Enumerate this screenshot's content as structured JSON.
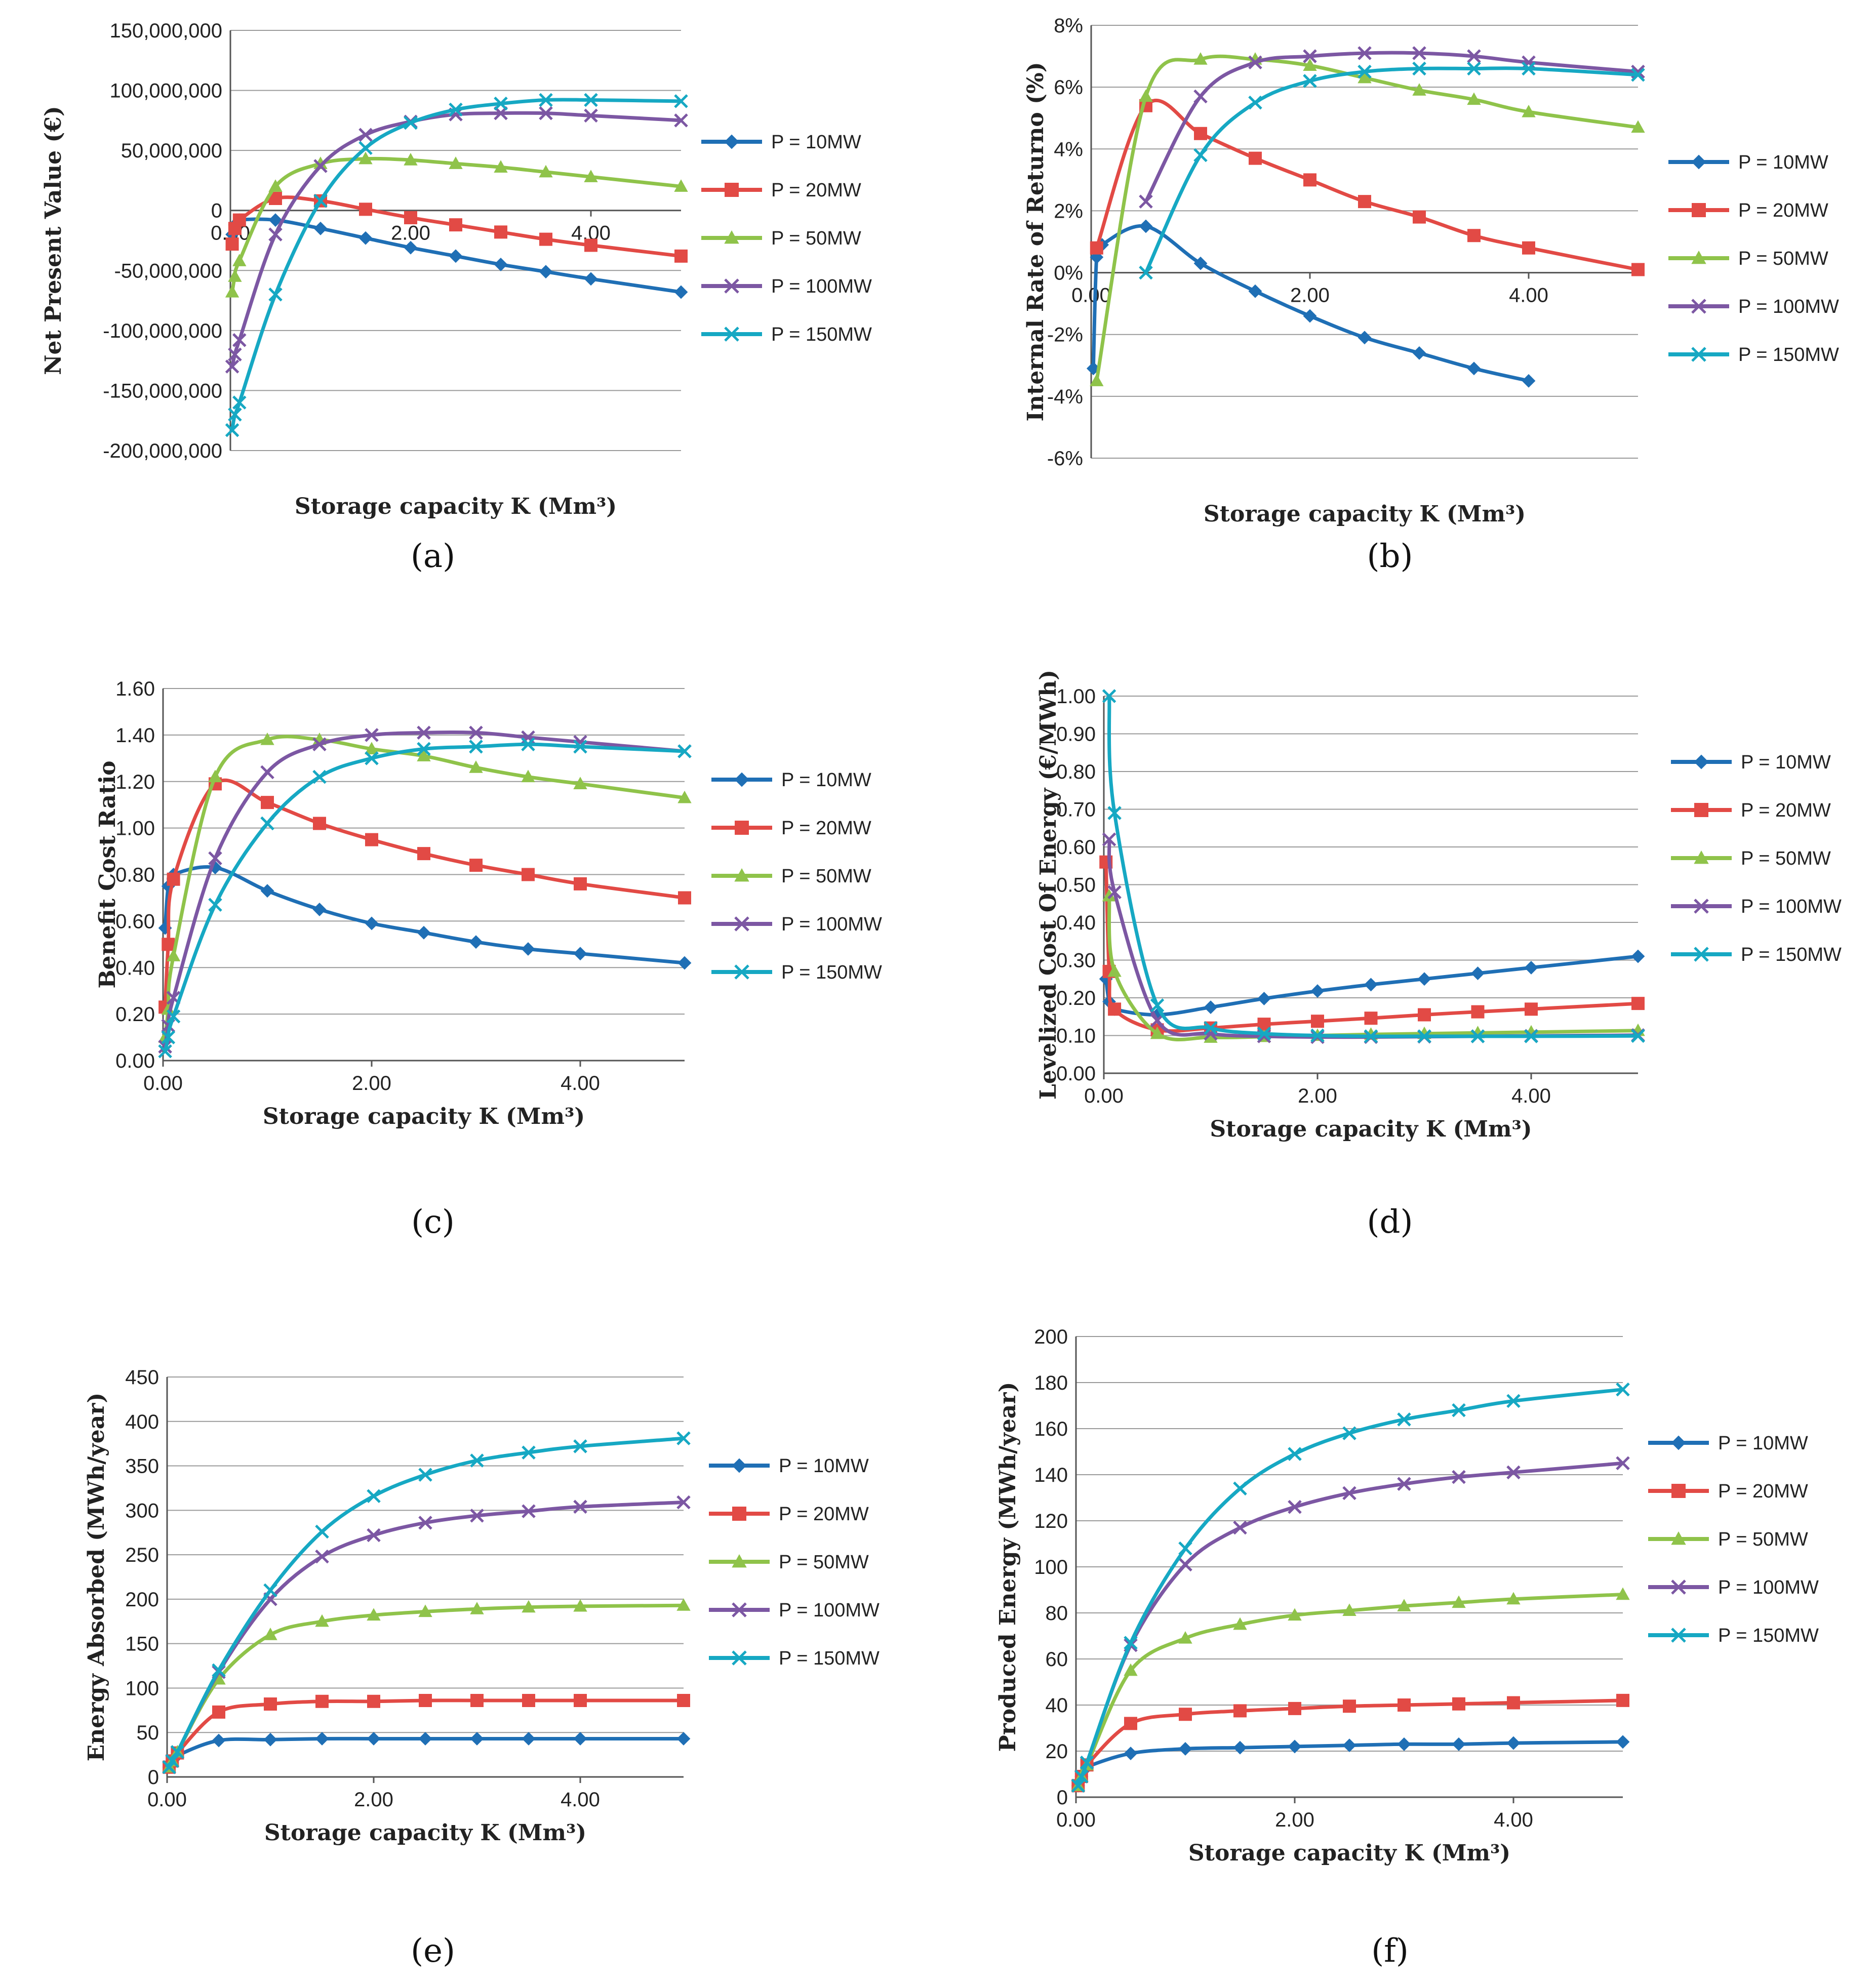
{
  "chart_data": [
    {
      "panel": "a",
      "caption": "(a)",
      "type": "line",
      "xlabel": "Storage capacity K (Mm³)",
      "ylabel": "Net Present Value (€)",
      "xlim": [
        0,
        5
      ],
      "ylim": [
        -200000000,
        150000000
      ],
      "xticks": [
        0,
        2,
        4
      ],
      "xtick_labels": [
        "0.00",
        "2.00",
        "4.00"
      ],
      "yticks": [
        -200000000,
        -150000000,
        -100000000,
        -50000000,
        0,
        50000000,
        100000000,
        150000000
      ],
      "ytick_labels": [
        "-200,000,000",
        "-150,000,000",
        "-100,000,000",
        "-50,000,000",
        "0",
        "50,000,000",
        "100,000,000",
        "150,000,000"
      ],
      "x_axis_at_zero": true,
      "x": [
        0.02,
        0.05,
        0.1,
        0.5,
        1,
        1.5,
        2,
        2.5,
        3,
        3.5,
        4,
        5
      ],
      "series": [
        {
          "name": "P = 10MW",
          "color": "#1f6fb5",
          "marker": "diamond",
          "values": [
            -20000000,
            -12000000,
            -8000000,
            -8000000,
            -15000000,
            -23000000,
            -31000000,
            -38000000,
            -45000000,
            -51000000,
            -57000000,
            -68000000
          ]
        },
        {
          "name": "P = 20MW",
          "color": "#e24a45",
          "marker": "square",
          "values": [
            -28000000,
            -15000000,
            -8000000,
            10000000,
            8000000,
            1000000,
            -6000000,
            -12000000,
            -18000000,
            -24000000,
            -29000000,
            -38000000
          ]
        },
        {
          "name": "P = 50MW",
          "color": "#8fc34a",
          "marker": "triangle",
          "values": [
            -68000000,
            -55000000,
            -42000000,
            20000000,
            39000000,
            43000000,
            42000000,
            39000000,
            36000000,
            32000000,
            28000000,
            20000000
          ]
        },
        {
          "name": "P = 100MW",
          "color": "#7c57a3",
          "marker": "x",
          "values": [
            -130000000,
            -120000000,
            -108000000,
            -20000000,
            37000000,
            63000000,
            74000000,
            80000000,
            81000000,
            81000000,
            79000000,
            75000000
          ]
        },
        {
          "name": "P = 150MW",
          "color": "#16a8c3",
          "marker": "x",
          "values": [
            -183000000,
            -170000000,
            -160000000,
            -70000000,
            8000000,
            52000000,
            73000000,
            84000000,
            89000000,
            92000000,
            92000000,
            91000000
          ]
        }
      ]
    },
    {
      "panel": "b",
      "caption": "(b)",
      "type": "line",
      "xlabel": "Storage capacity K (Mm³)",
      "ylabel": "Internal Rate of Returno (%)",
      "xlim": [
        0,
        5
      ],
      "ylim": [
        -6,
        8
      ],
      "xticks": [
        0,
        2,
        4
      ],
      "xtick_labels": [
        "0.00",
        "2.00",
        "4.00"
      ],
      "yticks": [
        -6,
        -4,
        -2,
        0,
        2,
        4,
        6,
        8
      ],
      "ytick_labels": [
        "-6%",
        "-4%",
        "-2%",
        "0%",
        "2%",
        "4%",
        "6%",
        "8%"
      ],
      "x_axis_at_zero": true,
      "series": [
        {
          "name": "P = 10MW",
          "color": "#1f6fb5",
          "marker": "diamond",
          "x": [
            0.02,
            0.05,
            0.1,
            0.5,
            1,
            1.5,
            2,
            2.5,
            3,
            3.5,
            4
          ],
          "values": [
            -3.1,
            0.5,
            0.9,
            1.5,
            0.3,
            -0.6,
            -1.4,
            -2.1,
            -2.6,
            -3.1,
            -3.5
          ]
        },
        {
          "name": "P = 20MW",
          "color": "#e24a45",
          "marker": "square",
          "x": [
            0.05,
            0.5,
            1,
            1.5,
            2,
            2.5,
            3,
            3.5,
            4,
            5
          ],
          "values": [
            0.8,
            5.4,
            4.5,
            3.7,
            3.0,
            2.3,
            1.8,
            1.2,
            0.8,
            0.1
          ]
        },
        {
          "name": "P = 50MW",
          "color": "#8fc34a",
          "marker": "triangle",
          "x": [
            0.05,
            0.5,
            1,
            1.5,
            2,
            2.5,
            3,
            3.5,
            4,
            5
          ],
          "values": [
            -3.5,
            5.7,
            6.9,
            6.9,
            6.7,
            6.3,
            5.9,
            5.6,
            5.2,
            4.7
          ]
        },
        {
          "name": "P = 100MW",
          "color": "#7c57a3",
          "marker": "x",
          "x": [
            0.5,
            1,
            1.5,
            2,
            2.5,
            3,
            3.5,
            4,
            5
          ],
          "values": [
            2.3,
            5.7,
            6.8,
            7.0,
            7.1,
            7.1,
            7.0,
            6.8,
            6.5
          ]
        },
        {
          "name": "P = 150MW",
          "color": "#16a8c3",
          "marker": "x",
          "x": [
            0.5,
            1,
            1.5,
            2,
            2.5,
            3,
            3.5,
            4,
            5
          ],
          "values": [
            0.0,
            3.8,
            5.5,
            6.2,
            6.5,
            6.6,
            6.6,
            6.6,
            6.4
          ]
        }
      ]
    },
    {
      "panel": "c",
      "caption": "(c)",
      "type": "line",
      "xlabel": "Storage capacity K (Mm³)",
      "ylabel": "Benefit Cost Ratio",
      "xlim": [
        0,
        5
      ],
      "ylim": [
        0,
        1.6
      ],
      "xticks": [
        0,
        2,
        4
      ],
      "xtick_labels": [
        "0.00",
        "2.00",
        "4.00"
      ],
      "yticks": [
        0,
        0.2,
        0.4,
        0.6,
        0.8,
        1.0,
        1.2,
        1.4,
        1.6
      ],
      "ytick_labels": [
        "0.00",
        "0.20",
        "0.40",
        "0.60",
        "0.80",
        "1.00",
        "1.20",
        "1.40",
        "1.60"
      ],
      "x_axis_at_zero": false,
      "x": [
        0.02,
        0.05,
        0.1,
        0.5,
        1,
        1.5,
        2,
        2.5,
        3,
        3.5,
        4,
        5
      ],
      "series": [
        {
          "name": "P = 10MW",
          "color": "#1f6fb5",
          "marker": "diamond",
          "values": [
            0.57,
            0.75,
            0.8,
            0.83,
            0.73,
            0.65,
            0.59,
            0.55,
            0.51,
            0.48,
            0.46,
            0.42
          ]
        },
        {
          "name": "P = 20MW",
          "color": "#e24a45",
          "marker": "square",
          "values": [
            0.23,
            0.5,
            0.78,
            1.19,
            1.11,
            1.02,
            0.95,
            0.89,
            0.84,
            0.8,
            0.76,
            0.7
          ]
        },
        {
          "name": "P = 50MW",
          "color": "#8fc34a",
          "marker": "triangle",
          "values": [
            0.1,
            0.22,
            0.45,
            1.22,
            1.38,
            1.38,
            1.34,
            1.31,
            1.26,
            1.22,
            1.19,
            1.13
          ]
        },
        {
          "name": "P = 100MW",
          "color": "#7c57a3",
          "marker": "x",
          "values": [
            0.06,
            0.15,
            0.27,
            0.87,
            1.24,
            1.36,
            1.4,
            1.41,
            1.41,
            1.39,
            1.37,
            1.33
          ]
        },
        {
          "name": "P = 150MW",
          "color": "#16a8c3",
          "marker": "x",
          "values": [
            0.04,
            0.1,
            0.19,
            0.67,
            1.02,
            1.22,
            1.3,
            1.34,
            1.35,
            1.36,
            1.35,
            1.33
          ]
        }
      ]
    },
    {
      "panel": "d",
      "caption": "(d)",
      "type": "line",
      "xlabel": "Storage capacity K (Mm³)",
      "ylabel": "Levelized Cost Of Energy (€/MWh)",
      "xlim": [
        0,
        5
      ],
      "ylim": [
        0,
        1.0
      ],
      "xticks": [
        0,
        2,
        4
      ],
      "xtick_labels": [
        "0.00",
        "2.00",
        "4.00"
      ],
      "yticks": [
        0,
        0.1,
        0.2,
        0.3,
        0.4,
        0.5,
        0.6,
        0.7,
        0.8,
        0.9,
        1.0
      ],
      "ytick_labels": [
        "0.00",
        "0.10",
        "0.20",
        "0.30",
        "0.40",
        "0.50",
        "0.60",
        "0.70",
        "0.80",
        "0.90",
        "1.00"
      ],
      "x_axis_at_zero": false,
      "series": [
        {
          "name": "P = 10MW",
          "color": "#1f6fb5",
          "marker": "diamond",
          "x": [
            0.02,
            0.05,
            0.1,
            0.5,
            1,
            1.5,
            2,
            2.5,
            3,
            3.5,
            4,
            5
          ],
          "values": [
            0.25,
            0.19,
            0.17,
            0.155,
            0.175,
            0.198,
            0.218,
            0.235,
            0.25,
            0.265,
            0.28,
            0.31
          ]
        },
        {
          "name": "P = 20MW",
          "color": "#e24a45",
          "marker": "square",
          "x": [
            0.02,
            0.05,
            0.1,
            0.5,
            1,
            1.5,
            2,
            2.5,
            3,
            3.5,
            4,
            5
          ],
          "values": [
            0.56,
            0.27,
            0.17,
            0.115,
            0.12,
            0.13,
            0.138,
            0.146,
            0.155,
            0.163,
            0.17,
            0.185
          ]
        },
        {
          "name": "P = 50MW",
          "color": "#8fc34a",
          "marker": "triangle",
          "x": [
            0.05,
            0.1,
            0.5,
            1,
            1.5,
            2,
            2.5,
            3,
            3.5,
            4,
            5
          ],
          "values": [
            0.47,
            0.27,
            0.105,
            0.095,
            0.097,
            0.1,
            0.103,
            0.105,
            0.107,
            0.109,
            0.113
          ]
        },
        {
          "name": "P = 100MW",
          "color": "#7c57a3",
          "marker": "x",
          "x": [
            0.05,
            0.1,
            0.5,
            1,
            1.5,
            2,
            2.5,
            3,
            3.5,
            4,
            5
          ],
          "values": [
            0.62,
            0.48,
            0.14,
            0.105,
            0.098,
            0.096,
            0.096,
            0.097,
            0.098,
            0.099,
            0.101
          ]
        },
        {
          "name": "P = 150MW",
          "color": "#16a8c3",
          "marker": "x",
          "x": [
            0.05,
            0.1,
            0.5,
            1,
            1.5,
            2,
            2.5,
            3,
            3.5,
            4,
            5
          ],
          "values": [
            1.0,
            0.69,
            0.18,
            0.12,
            0.105,
            0.1,
            0.098,
            0.098,
            0.098,
            0.098,
            0.099
          ]
        }
      ]
    },
    {
      "panel": "e",
      "caption": "(e)",
      "type": "line",
      "xlabel": "Storage capacity K (Mm³)",
      "ylabel": "Energy Absorbed (MWh/year)",
      "xlim": [
        0,
        5
      ],
      "ylim": [
        0,
        450
      ],
      "xticks": [
        0,
        2,
        4
      ],
      "xtick_labels": [
        "0.00",
        "2.00",
        "4.00"
      ],
      "yticks": [
        0,
        50,
        100,
        150,
        200,
        250,
        300,
        350,
        400,
        450
      ],
      "ytick_labels": [
        "0",
        "50",
        "100",
        "150",
        "200",
        "250",
        "300",
        "350",
        "400",
        "450"
      ],
      "x_axis_at_zero": false,
      "x": [
        0.02,
        0.05,
        0.1,
        0.5,
        1,
        1.5,
        2,
        2.5,
        3,
        3.5,
        4,
        5
      ],
      "series": [
        {
          "name": "P = 10MW",
          "color": "#1f6fb5",
          "marker": "diamond",
          "values": [
            11,
            17,
            24,
            41,
            42,
            43,
            43,
            43,
            43,
            43,
            43,
            43
          ]
        },
        {
          "name": "P = 20MW",
          "color": "#e24a45",
          "marker": "square",
          "values": [
            11,
            18,
            27,
            73,
            82,
            85,
            85,
            86,
            86,
            86,
            86,
            86
          ]
        },
        {
          "name": "P = 50MW",
          "color": "#8fc34a",
          "marker": "triangle",
          "values": [
            11,
            18,
            28,
            110,
            160,
            175,
            182,
            186,
            189,
            191,
            192,
            193
          ]
        },
        {
          "name": "P = 100MW",
          "color": "#7c57a3",
          "marker": "x",
          "values": [
            11,
            18,
            28,
            118,
            200,
            248,
            272,
            286,
            294,
            299,
            304,
            309
          ]
        },
        {
          "name": "P = 150MW",
          "color": "#16a8c3",
          "marker": "x",
          "values": [
            11,
            18,
            28,
            120,
            210,
            276,
            316,
            340,
            356,
            365,
            372,
            381
          ]
        }
      ]
    },
    {
      "panel": "f",
      "caption": "(f)",
      "type": "line",
      "xlabel": "Storage capacity K (Mm³)",
      "ylabel": "Produced Energy (MWh/year)",
      "xlim": [
        0,
        5
      ],
      "ylim": [
        0,
        200
      ],
      "xticks": [
        0,
        2,
        4
      ],
      "xtick_labels": [
        "0.00",
        "2.00",
        "4.00"
      ],
      "yticks": [
        0,
        20,
        40,
        60,
        80,
        100,
        120,
        140,
        160,
        180,
        200
      ],
      "ytick_labels": [
        "0",
        "20",
        "40",
        "60",
        "80",
        "100",
        "120",
        "140",
        "160",
        "180",
        "200"
      ],
      "x_axis_at_zero": false,
      "x": [
        0.02,
        0.05,
        0.1,
        0.5,
        1,
        1.5,
        2,
        2.5,
        3,
        3.5,
        4,
        5
      ],
      "series": [
        {
          "name": "P = 10MW",
          "color": "#1f6fb5",
          "marker": "diamond",
          "values": [
            5,
            9,
            13,
            19,
            21,
            21.5,
            22,
            22.5,
            23,
            23,
            23.5,
            24
          ]
        },
        {
          "name": "P = 20MW",
          "color": "#e24a45",
          "marker": "square",
          "values": [
            5,
            9,
            14,
            32,
            36,
            37.5,
            38.5,
            39.5,
            40,
            40.5,
            41,
            42
          ]
        },
        {
          "name": "P = 50MW",
          "color": "#8fc34a",
          "marker": "triangle",
          "values": [
            5,
            9,
            14,
            55,
            69,
            75,
            79,
            81,
            83,
            84.5,
            86,
            88
          ]
        },
        {
          "name": "P = 100MW",
          "color": "#7c57a3",
          "marker": "x",
          "values": [
            5,
            9,
            15,
            66,
            101,
            117,
            126,
            132,
            136,
            139,
            141,
            145
          ]
        },
        {
          "name": "P = 150MW",
          "color": "#16a8c3",
          "marker": "x",
          "values": [
            5,
            9,
            15,
            67,
            108,
            134,
            149,
            158,
            164,
            168,
            172,
            177
          ]
        }
      ]
    }
  ]
}
